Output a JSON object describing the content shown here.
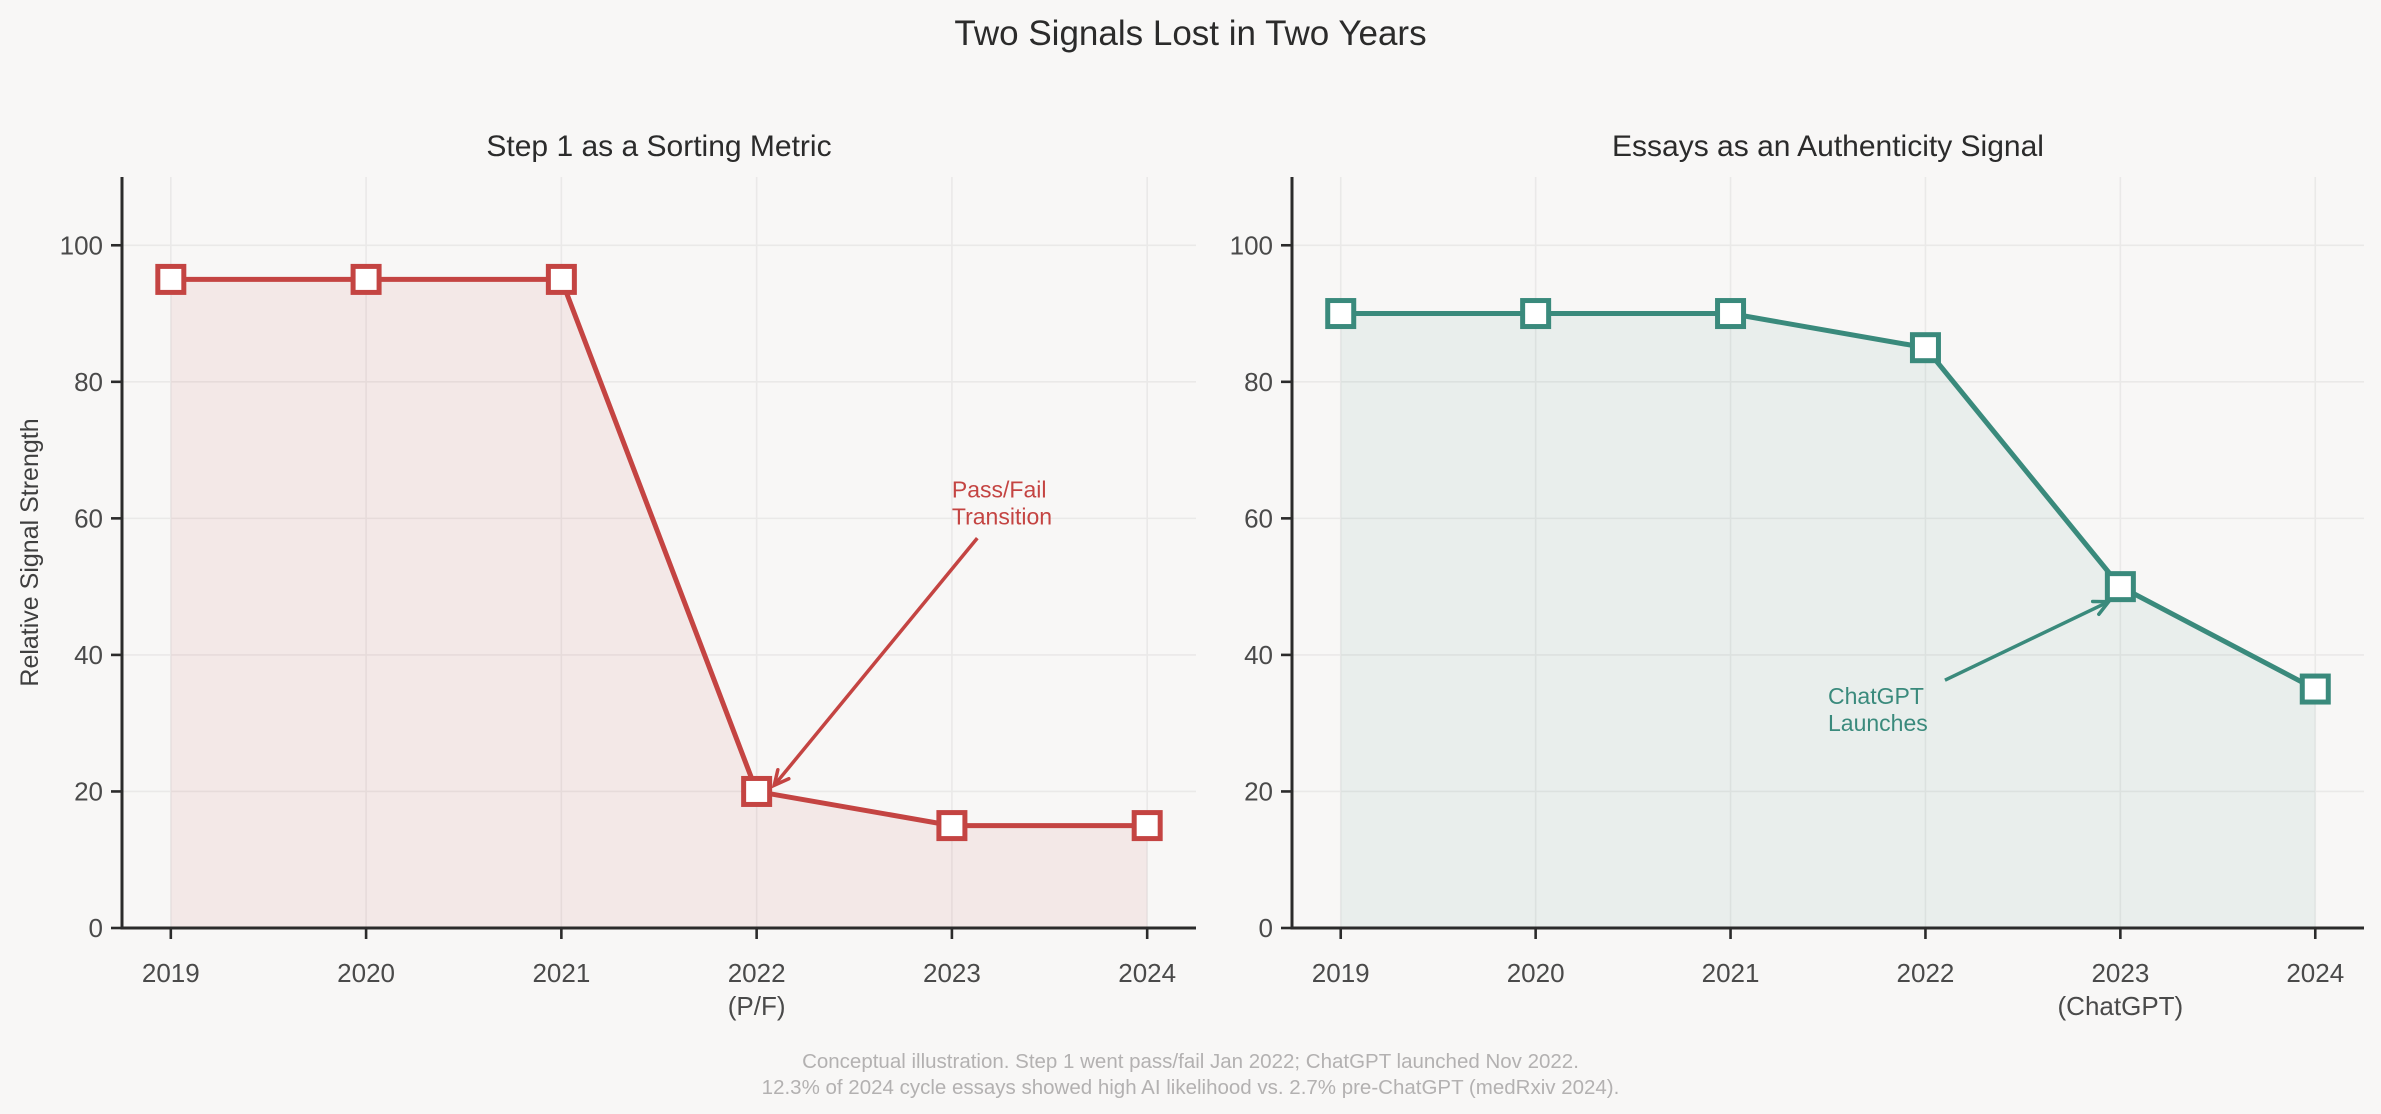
{
  "page": {
    "title": "Two Signals Lost in Two Years",
    "footer": [
      "Conceptual illustration. Step 1 went pass/fail Jan 2022; ChatGPT launched Nov 2022.",
      "12.3% of 2024 cycle essays showed high AI likelihood vs. 2.7% pre-ChatGPT (medRxiv 2024)."
    ]
  },
  "colors": {
    "background": "#f8f7f6",
    "spine": "#2b2b2b",
    "grid": "#eae9e8",
    "tick_label": "#4a4a4a",
    "title_text": "#2b2b2b",
    "footer_text": "#b3b1b1",
    "red": "#c44442",
    "red_fill": "rgba(196,68,66,0.08)",
    "teal": "#3a8a7c",
    "teal_fill": "rgba(58,138,124,0.08)",
    "marker_face": "#ffffff"
  },
  "chart_data": [
    {
      "id": "step1-chart",
      "type": "area",
      "title": "Step 1 as a Sorting Metric",
      "color": "#c44442",
      "fill": "rgba(196,68,66,0.08)",
      "x": [
        2019,
        2020,
        2021,
        2022,
        2023,
        2024
      ],
      "values": [
        95,
        95,
        95,
        20,
        15,
        15
      ],
      "xticks": [
        {
          "label": "2019",
          "sub": ""
        },
        {
          "label": "2020",
          "sub": ""
        },
        {
          "label": "2021",
          "sub": ""
        },
        {
          "label": "2022",
          "sub": "(P/F)"
        },
        {
          "label": "2023",
          "sub": ""
        },
        {
          "label": "2024",
          "sub": ""
        }
      ],
      "yticks": [
        0,
        20,
        40,
        60,
        80,
        100
      ],
      "ylabel": "Relative Signal Strength",
      "xlim": [
        2018.75,
        2024.25
      ],
      "ylim": [
        0,
        110
      ],
      "grid": true,
      "marker": "square",
      "annotation": {
        "lines": [
          "Pass/Fail",
          "Transition"
        ],
        "text_at": {
          "x": 2023.0,
          "y": 64.2
        },
        "arrow_from": {
          "x": 2023.13,
          "y": 57.1
        },
        "arrow_to": {
          "x": 2022.09,
          "y": 20.9
        }
      }
    },
    {
      "id": "essays-chart",
      "type": "area",
      "title": "Essays as an Authenticity Signal",
      "color": "#3a8a7c",
      "fill": "rgba(58,138,124,0.08)",
      "x": [
        2019,
        2020,
        2021,
        2022,
        2023,
        2024
      ],
      "values": [
        90,
        90,
        90,
        85,
        50,
        35
      ],
      "xticks": [
        {
          "label": "2019",
          "sub": ""
        },
        {
          "label": "2020",
          "sub": ""
        },
        {
          "label": "2021",
          "sub": ""
        },
        {
          "label": "2022",
          "sub": ""
        },
        {
          "label": "2023",
          "sub": "(ChatGPT)"
        },
        {
          "label": "2024",
          "sub": ""
        }
      ],
      "yticks": [
        0,
        20,
        40,
        60,
        80,
        100
      ],
      "ylabel": "",
      "xlim": [
        2018.75,
        2024.25
      ],
      "ylim": [
        0,
        110
      ],
      "grid": true,
      "marker": "square",
      "annotation": {
        "lines": [
          "ChatGPT",
          "Launches"
        ],
        "text_at": {
          "x": 2021.5,
          "y": 34.0
        },
        "arrow_from": {
          "x": 2022.1,
          "y": 36.3
        },
        "arrow_to": {
          "x": 2022.94,
          "y": 47.8
        }
      }
    }
  ]
}
